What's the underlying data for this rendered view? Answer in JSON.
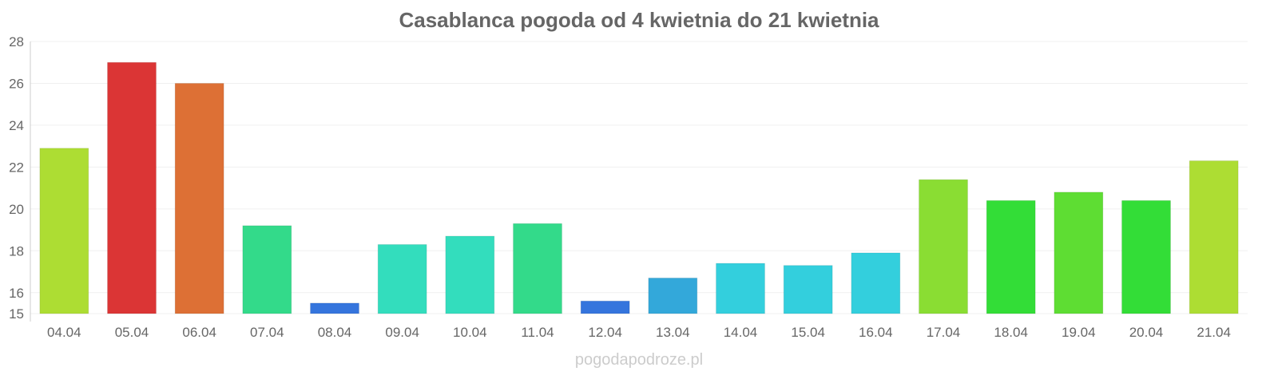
{
  "chart_data": {
    "type": "bar",
    "title": "Casablanca pogoda od 4 kwietnia do 21 kwietnia",
    "xlabel": "",
    "ylabel": "",
    "ylim": [
      15,
      28
    ],
    "yticks": [
      15,
      16,
      18,
      20,
      22,
      24,
      26,
      28
    ],
    "grid": true,
    "categories": [
      "04.04",
      "05.04",
      "06.04",
      "07.04",
      "08.04",
      "09.04",
      "10.04",
      "11.04",
      "12.04",
      "13.04",
      "14.04",
      "15.04",
      "16.04",
      "17.04",
      "18.04",
      "19.04",
      "20.04",
      "21.04"
    ],
    "values": [
      22.9,
      27.0,
      26.0,
      19.2,
      15.5,
      18.3,
      18.7,
      19.3,
      15.6,
      16.7,
      17.4,
      17.3,
      17.9,
      21.4,
      20.4,
      20.8,
      20.4,
      22.3
    ],
    "colors": [
      "#addd33",
      "#db3535",
      "#dd7035",
      "#33da8a",
      "#3575dd",
      "#33ddbd",
      "#33ddbd",
      "#33da8a",
      "#3575dd",
      "#33a8da",
      "#33cfdd",
      "#33cfdd",
      "#33cfdd",
      "#8add33",
      "#33dd37",
      "#5edd33",
      "#33dd37",
      "#addd33"
    ]
  },
  "credit": "pogodapodroze.pl"
}
